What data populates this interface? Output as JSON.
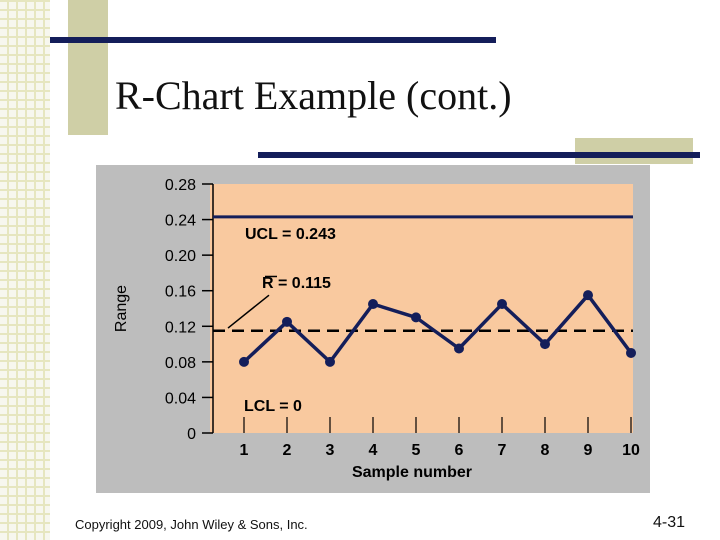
{
  "title": "R-Chart Example (cont.)",
  "footer": {
    "copyright": "Copyright 2009, John Wiley & Sons, Inc.",
    "page": "4-31"
  },
  "colors": {
    "plot_bg": "#f9c99f",
    "frame_bg": "#bdbdbd",
    "navy": "#141e5a",
    "olive": "#cfcfa6"
  },
  "chart_data": {
    "type": "line",
    "xlabel": "Sample number",
    "ylabel": "Range",
    "x": [
      1,
      2,
      3,
      4,
      5,
      6,
      7,
      8,
      9,
      10
    ],
    "x_tick_labels": [
      "1",
      "2",
      "3",
      "4",
      "5",
      "6",
      "7",
      "8",
      "9",
      "10"
    ],
    "values": [
      0.08,
      0.125,
      0.08,
      0.145,
      0.13,
      0.095,
      0.145,
      0.1,
      0.155,
      0.09
    ],
    "ylim": [
      0,
      0.28
    ],
    "y_ticks": [
      0,
      0.04,
      0.08,
      0.12,
      0.16,
      0.2,
      0.24,
      0.28
    ],
    "y_tick_labels": [
      "0",
      "0.04",
      "0.08",
      "0.12",
      "0.16",
      "0.20",
      "0.24",
      "0.28"
    ],
    "ucl": {
      "value": 0.243,
      "label": "UCL = 0.243"
    },
    "center": {
      "value": 0.115,
      "label": "R = 0.115"
    },
    "lcl": {
      "value": 0,
      "label": "LCL = 0"
    },
    "grid": false
  }
}
